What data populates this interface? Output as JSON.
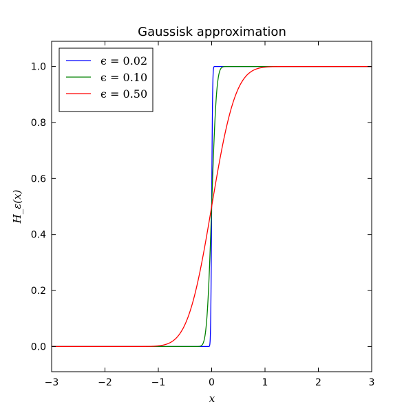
{
  "chart_data": {
    "type": "line",
    "title": "Gaussisk approximation",
    "xlabel": "x",
    "ylabel": "H_ε(x)",
    "xlim": [
      -3,
      3
    ],
    "ylim": [
      -0.09,
      1.09
    ],
    "xticks": [
      -3,
      -2,
      -1,
      0,
      1,
      2,
      3
    ],
    "xtick_labels": [
      "−3",
      "−2",
      "−1",
      "0",
      "1",
      "2",
      "3"
    ],
    "yticks": [
      0.0,
      0.2,
      0.4,
      0.6,
      0.8,
      1.0
    ],
    "ytick_labels": [
      "0.0",
      "0.2",
      "0.4",
      "0.6",
      "0.8",
      "1.0"
    ],
    "grid": false,
    "legend_position": "top-left",
    "series": [
      {
        "name": "ϵ = 0.02",
        "epsilon": 0.02,
        "color": "#0000ff"
      },
      {
        "name": "ϵ = 0.10",
        "epsilon": 0.1,
        "color": "#008000"
      },
      {
        "name": "ϵ = 0.50",
        "epsilon": 0.5,
        "color": "#ff0000"
      }
    ]
  }
}
